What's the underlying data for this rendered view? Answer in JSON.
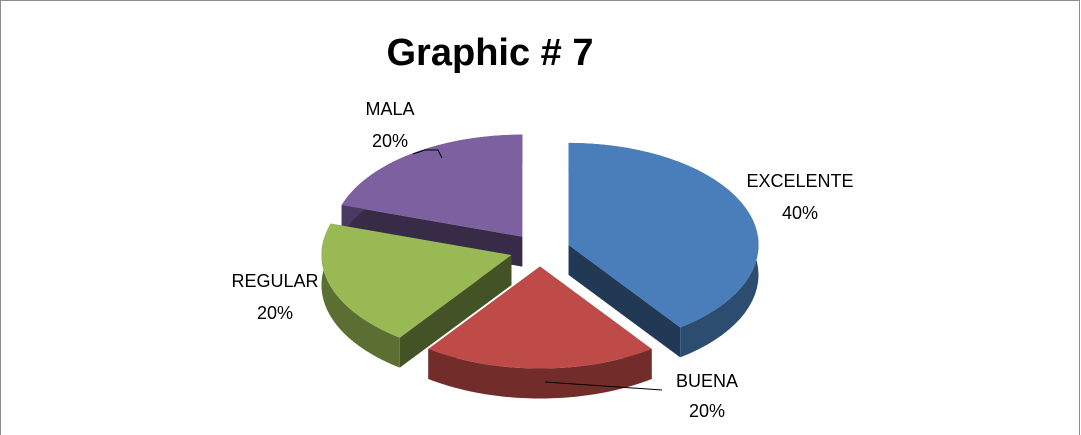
{
  "chart_data": {
    "type": "pie",
    "title": "Graphic # 7",
    "categories": [
      "EXCELENTE",
      "BUENA",
      "REGULAR",
      "MALA"
    ],
    "values": [
      40,
      20,
      20,
      20
    ],
    "value_labels": [
      "40%",
      "20%",
      "20%",
      "20%"
    ],
    "colors": [
      "#4a7ebb",
      "#be4b48",
      "#98b954",
      "#7d60a0"
    ]
  }
}
